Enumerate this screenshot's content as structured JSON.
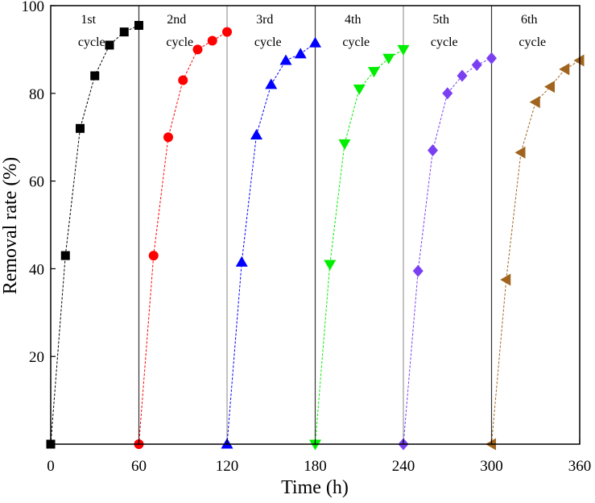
{
  "chart_data": {
    "type": "line",
    "title": "",
    "xlabel": "Time (h)",
    "ylabel": "Removal rate (%)",
    "xlim": [
      0,
      360
    ],
    "ylim": [
      0,
      100
    ],
    "xticks": [
      0,
      60,
      120,
      180,
      240,
      300,
      360
    ],
    "yticks": [
      20,
      40,
      60,
      80,
      100
    ],
    "cycle_boundaries": [
      60,
      120,
      180,
      240,
      300
    ],
    "cycle_labels": [
      {
        "line1": "1st",
        "line2": "cycle"
      },
      {
        "line1": "2nd",
        "line2": "cycle"
      },
      {
        "line1": "3rd",
        "line2": "cycle"
      },
      {
        "line1": "4th",
        "line2": "cycle"
      },
      {
        "line1": "5th",
        "line2": "cycle"
      },
      {
        "line1": "6th",
        "line2": "cycle"
      }
    ],
    "series": [
      {
        "name": "1st cycle",
        "marker": "square",
        "color": "#000000",
        "x": [
          0,
          10,
          20,
          30,
          40,
          50,
          60
        ],
        "y": [
          0,
          43,
          72,
          84,
          91,
          94,
          95.5
        ]
      },
      {
        "name": "2nd cycle",
        "marker": "circle",
        "color": "#ff0000",
        "x": [
          60,
          70,
          80,
          90,
          100,
          110,
          120
        ],
        "y": [
          0,
          43,
          70,
          83,
          90,
          92,
          94
        ]
      },
      {
        "name": "3rd cycle",
        "marker": "triangle-up",
        "color": "#0000ff",
        "x": [
          120,
          130,
          140,
          150,
          160,
          170,
          180
        ],
        "y": [
          0,
          41.5,
          70.5,
          82,
          87.5,
          89,
          91.5
        ]
      },
      {
        "name": "4th cycle",
        "marker": "triangle-down",
        "color": "#00ee00",
        "x": [
          180,
          190,
          200,
          210,
          220,
          230,
          240
        ],
        "y": [
          0,
          41,
          68.5,
          81,
          85,
          88,
          90
        ]
      },
      {
        "name": "5th cycle",
        "marker": "diamond",
        "color": "#7b3ff2",
        "x": [
          240,
          250,
          260,
          270,
          280,
          290,
          300
        ],
        "y": [
          0,
          39.5,
          67,
          80,
          84,
          86.5,
          88
        ]
      },
      {
        "name": "6th cycle",
        "marker": "triangle-left",
        "color": "#a0641e",
        "x": [
          300,
          310,
          320,
          330,
          340,
          350,
          360
        ],
        "y": [
          0,
          37.5,
          66.5,
          78,
          81.5,
          85.5,
          87.5
        ]
      }
    ]
  }
}
